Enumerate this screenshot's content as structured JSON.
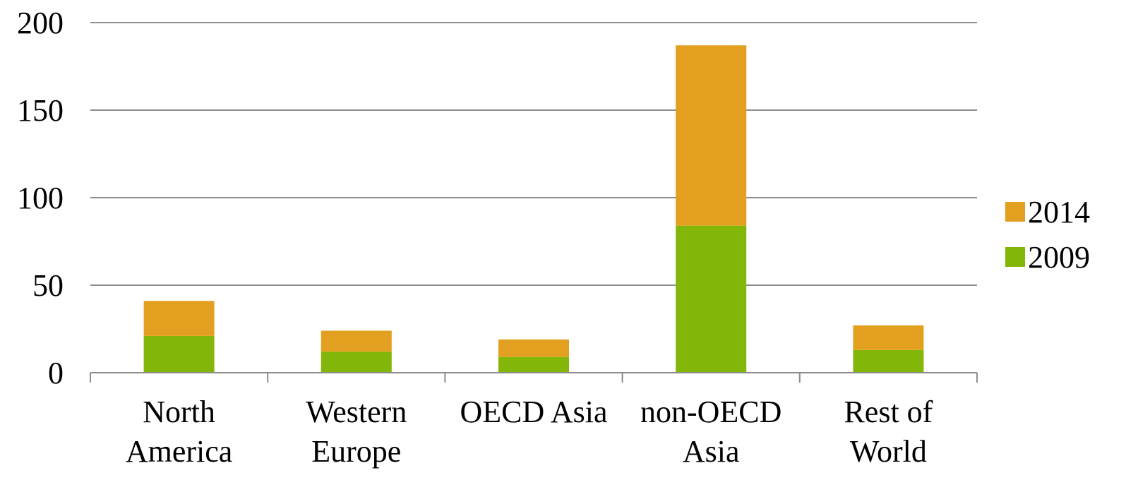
{
  "chart_data": {
    "type": "bar",
    "stacked": true,
    "categories": [
      [
        "North",
        "America"
      ],
      [
        "Western",
        "Europe"
      ],
      [
        "OECD Asia"
      ],
      [
        "non-OECD",
        "Asia"
      ],
      [
        "Rest of",
        "World"
      ]
    ],
    "series": [
      {
        "name": "2009",
        "color": "#82b70a",
        "values": [
          21,
          12,
          9,
          84,
          13
        ]
      },
      {
        "name": "2014",
        "color": "#e3a020",
        "values": [
          20,
          12,
          10,
          103,
          14
        ]
      }
    ],
    "title": "",
    "xlabel": "",
    "ylabel": "",
    "ylim": [
      0,
      200
    ],
    "yticks": [
      0,
      50,
      100,
      150,
      200
    ],
    "grid": true,
    "legend_position": "right",
    "legend_order": [
      "2014",
      "2009"
    ]
  }
}
